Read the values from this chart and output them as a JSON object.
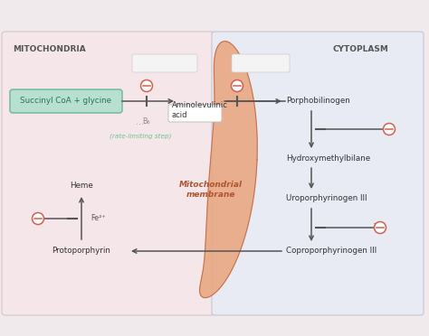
{
  "bg_color": "#f0eaed",
  "mito_bg": "#f5e6ea",
  "cyto_bg": "#e8eaf4",
  "membrane_color": "#e8a882",
  "membrane_edge": "#c07050",
  "mito_label": "MITOCHONDRIA",
  "cyto_label": "CYTOPLASM",
  "succinyl_bg": "#b8e0d0",
  "succinyl_border": "#6ab89a",
  "succinyl_text": "Succinyl CoA + glycine",
  "succinyl_text_color": "#2a7060",
  "aminolevulinic_text": "Aminolevulinic\nacid",
  "porphobilinogen_text": "Porphobilinogen",
  "hydroxymethylbilane_text": "Hydroxymethylbilane",
  "uroporphyrinogen_text": "Uroporphyrinogen III",
  "coproporphyrinogen_text": "Coproporphyrinogen III",
  "protoporphyrin_text": "Protoporphyrin",
  "heme_text": "Heme",
  "fe_text": "Fe²⁺",
  "b6_text": "B₆",
  "rate_limiting_text": "(rate-limiting step)",
  "mito_membrane_text": "Mitochondrial\nmembrane",
  "inhibitor_fill": "#ffffff",
  "inhibitor_edge": "#d06050",
  "arrow_color": "#555555",
  "text_color": "#333333",
  "teal_label": "#70c090",
  "panel_edge_mito": "#d0b8bc",
  "panel_edge_cyto": "#b8b8cc"
}
